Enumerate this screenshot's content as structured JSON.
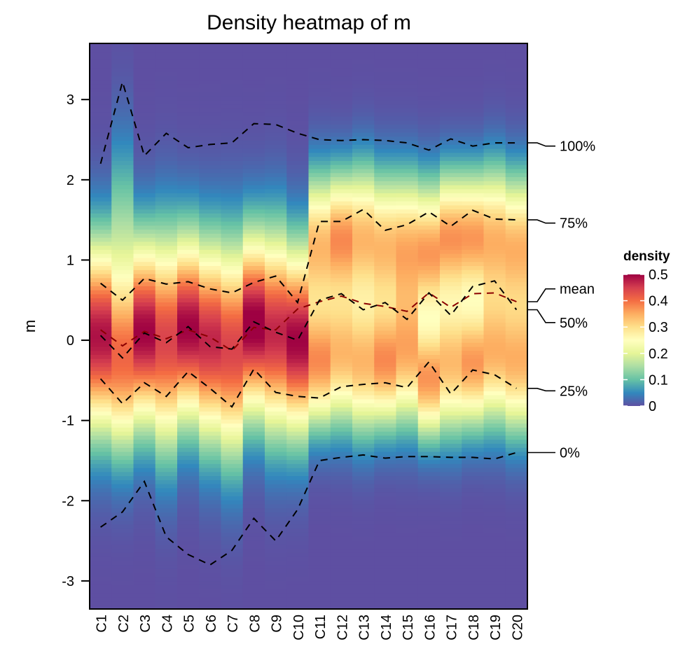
{
  "chart_data": {
    "type": "heatmap",
    "title": "Density heatmap of m",
    "xlabel": "",
    "ylabel": "m",
    "ylim": [
      -3.35,
      3.7
    ],
    "y_ticks": [
      -3,
      -2,
      -1,
      0,
      1,
      2,
      3
    ],
    "y_tick_labels": [
      "-3",
      "-2",
      "-1",
      "0",
      "1",
      "2",
      "3"
    ],
    "categories": [
      "C1",
      "C2",
      "C3",
      "C4",
      "C5",
      "C6",
      "C7",
      "C8",
      "C9",
      "C10",
      "C11",
      "C12",
      "C13",
      "C14",
      "C15",
      "C16",
      "C17",
      "C18",
      "C19",
      "C20"
    ],
    "colorscale": {
      "name": "Spectral (reversed)",
      "title": "density",
      "range": [
        0,
        0.5
      ],
      "ticks": [
        0,
        0.1,
        0.2,
        0.3,
        0.4,
        0.5
      ],
      "tick_labels": [
        "0",
        "0.1",
        "0.2",
        "0.3",
        "0.4",
        "0.5"
      ],
      "colors": [
        "#5E4FA2",
        "#3288BD",
        "#66C2A5",
        "#ABDDA4",
        "#E6F598",
        "#FFFFBF",
        "#FEE08B",
        "#FDAE61",
        "#F46D43",
        "#D53E4F",
        "#9E0142"
      ]
    },
    "density_model": {
      "description": "approximate per-column density profiles (mixture of gaussian components: weight, mean, sd)",
      "columns": [
        [
          [
            1.0,
            0.05,
            0.82
          ]
        ],
        [
          [
            0.7,
            -0.3,
            0.75
          ],
          [
            0.3,
            1.2,
            0.9
          ]
        ],
        [
          [
            1.0,
            0.1,
            0.8
          ]
        ],
        [
          [
            1.0,
            0.0,
            0.9
          ]
        ],
        [
          [
            1.0,
            0.15,
            0.8
          ]
        ],
        [
          [
            1.0,
            0.0,
            0.85
          ]
        ],
        [
          [
            1.0,
            -0.1,
            0.9
          ]
        ],
        [
          [
            1.0,
            0.2,
            0.78
          ]
        ],
        [
          [
            1.0,
            0.1,
            0.85
          ]
        ],
        [
          [
            1.0,
            0.0,
            0.8
          ]
        ],
        [
          [
            0.5,
            -0.3,
            0.55
          ],
          [
            0.5,
            1.2,
            0.6
          ]
        ],
        [
          [
            0.5,
            -0.2,
            0.6
          ],
          [
            0.5,
            1.3,
            0.55
          ]
        ],
        [
          [
            0.5,
            -0.3,
            0.6
          ],
          [
            0.5,
            1.3,
            0.6
          ]
        ],
        [
          [
            0.5,
            -0.3,
            0.55
          ],
          [
            0.5,
            1.2,
            0.6
          ]
        ],
        [
          [
            0.5,
            -0.2,
            0.6
          ],
          [
            0.5,
            1.2,
            0.6
          ]
        ],
        [
          [
            0.45,
            -0.5,
            0.5
          ],
          [
            0.55,
            1.1,
            0.6
          ]
        ],
        [
          [
            0.5,
            -0.3,
            0.6
          ],
          [
            0.5,
            1.3,
            0.55
          ]
        ],
        [
          [
            0.5,
            -0.3,
            0.55
          ],
          [
            0.5,
            1.3,
            0.55
          ]
        ],
        [
          [
            0.5,
            -0.2,
            0.6
          ],
          [
            0.5,
            1.3,
            0.6
          ]
        ],
        [
          [
            0.5,
            -0.3,
            0.6
          ],
          [
            0.5,
            1.2,
            0.6
          ]
        ]
      ]
    },
    "series": [
      {
        "name": "100%",
        "color": "#000000",
        "values": [
          2.2,
          3.22,
          2.3,
          2.58,
          2.4,
          2.44,
          2.46,
          2.7,
          2.69,
          2.58,
          2.5,
          2.49,
          2.5,
          2.49,
          2.46,
          2.37,
          2.51,
          2.42,
          2.46,
          2.46
        ]
      },
      {
        "name": "75%",
        "color": "#000000",
        "values": [
          0.71,
          0.5,
          0.77,
          0.7,
          0.73,
          0.64,
          0.59,
          0.72,
          0.8,
          0.47,
          1.48,
          1.48,
          1.63,
          1.37,
          1.44,
          1.6,
          1.42,
          1.62,
          1.51,
          1.5
        ]
      },
      {
        "name": "mean",
        "color": "#8B0000",
        "values": [
          0.13,
          -0.07,
          0.11,
          0.02,
          0.13,
          0.04,
          -0.13,
          0.16,
          0.13,
          0.39,
          0.48,
          0.55,
          0.46,
          0.42,
          0.36,
          0.59,
          0.41,
          0.58,
          0.59,
          0.48
        ]
      },
      {
        "name": "50%",
        "color": "#000000",
        "values": [
          0.06,
          -0.22,
          0.09,
          -0.03,
          0.17,
          -0.08,
          -0.11,
          0.23,
          0.1,
          0.0,
          0.5,
          0.58,
          0.38,
          0.47,
          0.26,
          0.59,
          0.31,
          0.67,
          0.74,
          0.38
        ]
      },
      {
        "name": "25%",
        "color": "#000000",
        "values": [
          -0.48,
          -0.79,
          -0.53,
          -0.7,
          -0.39,
          -0.6,
          -0.83,
          -0.36,
          -0.65,
          -0.7,
          -0.72,
          -0.58,
          -0.55,
          -0.53,
          -0.59,
          -0.27,
          -0.67,
          -0.37,
          -0.43,
          -0.6
        ]
      },
      {
        "name": "0%",
        "color": "#000000",
        "values": [
          -2.33,
          -2.14,
          -1.76,
          -2.45,
          -2.67,
          -2.8,
          -2.62,
          -2.22,
          -2.5,
          -2.11,
          -1.5,
          -1.46,
          -1.43,
          -1.47,
          -1.45,
          -1.45,
          -1.46,
          -1.46,
          -1.48,
          -1.4
        ]
      }
    ],
    "right_labels": [
      {
        "series": "100%",
        "label": "100%",
        "label_y": 2.42
      },
      {
        "series": "75%",
        "label": "75%",
        "label_y": 1.46
      },
      {
        "series": "mean",
        "label": "mean",
        "label_y": 0.64
      },
      {
        "series": "50%",
        "label": "50%",
        "label_y": 0.22
      },
      {
        "series": "25%",
        "label": "25%",
        "label_y": -0.63
      },
      {
        "series": "0%",
        "label": "0%",
        "label_y": -1.4
      }
    ],
    "legend_position": "right"
  }
}
